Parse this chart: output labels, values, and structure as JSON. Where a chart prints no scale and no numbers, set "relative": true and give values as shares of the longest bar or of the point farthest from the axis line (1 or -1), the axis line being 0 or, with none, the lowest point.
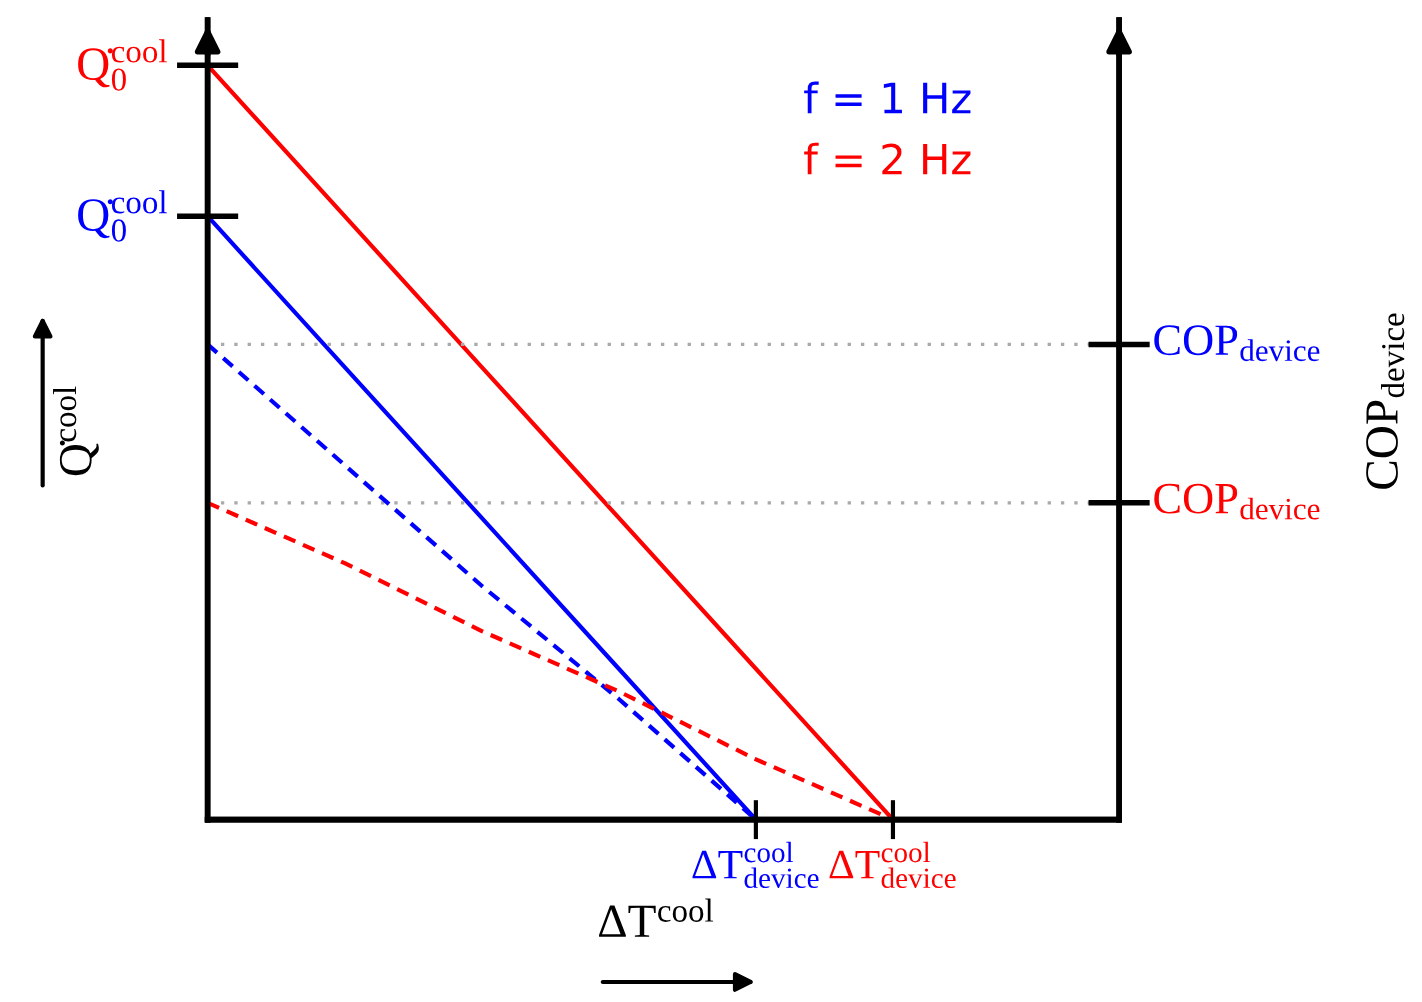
{
  "chart_data": {
    "type": "line",
    "relative": true,
    "xlabel": "ΔT$^{cool}$",
    "ylabel": "Q̇$^{cool}$",
    "categories": [
      null,
      null,
      null,
      null,
      "ΔT$^{cool}$$_{device}$",
      "ΔT$^{cool}$$_{device}$"
    ],
    "series": [
      {
        "name": "f = 1 Hz",
        "color": "#0000ff",
        "values": [
          0.8,
          0.6,
          0.4,
          0.2,
          0,
          null
        ],
        "line_style": "solid"
      },
      {
        "name": "f = 2 Hz",
        "color": "#ff0000",
        "values": [
          1,
          0.8,
          0.6,
          0.4,
          0.2,
          0
        ],
        "line_style": "solid"
      },
      {
        "color": "#0000ff",
        "values": [
          0.63,
          0.47,
          0.31,
          0.16,
          0,
          null
        ],
        "line_style": "dashed",
        "axis": "y2"
      },
      {
        "color": "#ff0000",
        "values": [
          0.42,
          0.34,
          0.25,
          0.17,
          0.08,
          0
        ],
        "line_style": "dashed",
        "axis": "y2"
      }
    ],
    "annotations": [
      "Q̇$^{cool}$$_{0}$",
      "Q̇$^{cool}$$_{0}$",
      "COP$_{device}$"
    ],
    "ref_lines": [
      {
        "axis": "y2",
        "value": 0.63,
        "label": "COP$_{device}$",
        "color": "#aaaaaa",
        "line_style": "dotted"
      },
      {
        "axis": "y2",
        "value": 0.42,
        "label": "COP$_{device}$",
        "color": "#aaaaaa",
        "line_style": "dotted"
      }
    ]
  }
}
